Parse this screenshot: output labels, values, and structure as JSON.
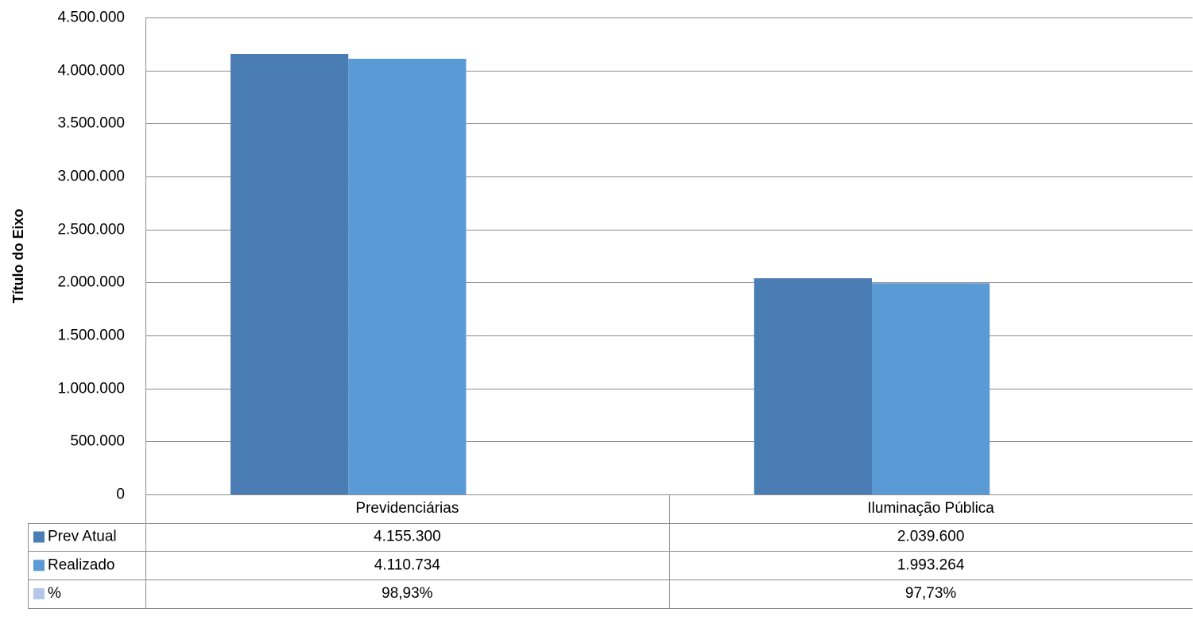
{
  "chart_data": {
    "type": "bar",
    "y_axis_label": "Título do Eixo",
    "categories": [
      "Previdenciárias",
      "Iluminação Pública"
    ],
    "series": [
      {
        "name": "Prev Atual",
        "color": "#4a7db3",
        "values": [
          4155300,
          2039600
        ],
        "value_labels": [
          "4.155.300",
          "2.039.600"
        ]
      },
      {
        "name": "Realizado",
        "color": "#5b9bd5",
        "values": [
          4110734,
          1993264
        ],
        "value_labels": [
          "4.110.734",
          "1.993.264"
        ]
      },
      {
        "name": "%",
        "color": "#b4c7e7",
        "values": [
          98.93,
          97.73
        ],
        "value_labels": [
          "98,93%",
          "97,73%"
        ]
      }
    ],
    "ylim": [
      0,
      4500000
    ],
    "yticks": [
      0,
      {
        "value": 500000,
        "label": "500.000"
      },
      {
        "value": 1000000,
        "label": "1.000.000"
      },
      {
        "value": 1500000,
        "label": "1.500.000"
      },
      {
        "value": 2000000,
        "label": "2.000.000"
      },
      {
        "value": 2500000,
        "label": "2.500.000"
      },
      {
        "value": 3000000,
        "label": "3.000.000"
      },
      {
        "value": 3500000,
        "label": "3.500.000"
      },
      {
        "value": 4000000,
        "label": "4.000.000"
      },
      {
        "value": 4500000,
        "label": "4.500.000"
      }
    ],
    "grid": true
  }
}
